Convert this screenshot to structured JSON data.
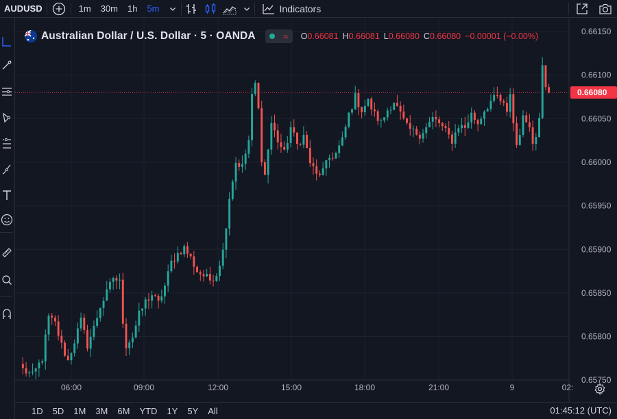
{
  "toolbar": {
    "symbol": "AUDUSD",
    "intervals": [
      "1m",
      "30m",
      "1h",
      "5m"
    ],
    "active_interval": "5m",
    "indicators_label": "Indicators"
  },
  "legend": {
    "title": "Australian Dollar / U.S. Dollar · 5 · OANDA",
    "open_label": "O",
    "open": "0.66081",
    "high_label": "H",
    "high": "0.66081",
    "low_label": "L",
    "low": "0.66080",
    "close_label": "C",
    "close": "0.66080",
    "change": "−0.00001 (−0.00%)"
  },
  "colors": {
    "background": "#131722",
    "up": "#26a69a",
    "down": "#ef5350",
    "price_label": "#f23645",
    "accent": "#2962ff"
  },
  "chart_data": {
    "type": "candlestick",
    "y_ticks": [
      "0.66150",
      "0.66100",
      "0.66050",
      "0.66000",
      "0.65950",
      "0.65900",
      "0.65850",
      "0.65800",
      "0.65750"
    ],
    "ylim": [
      0.65725,
      0.66165
    ],
    "x_ticks": [
      "06:00",
      "09:00",
      "12:00",
      "15:00",
      "18:00",
      "21:00",
      "9",
      "02:"
    ],
    "current_price": "0.66080",
    "close_path": [
      [
        0,
        0.65762
      ],
      [
        3,
        0.65755
      ],
      [
        6,
        0.65775
      ],
      [
        8,
        0.65822
      ],
      [
        10,
        0.65815
      ],
      [
        12,
        0.6579
      ],
      [
        14,
        0.65772
      ],
      [
        16,
        0.65795
      ],
      [
        18,
        0.65818
      ],
      [
        20,
        0.6579
      ],
      [
        22,
        0.6581
      ],
      [
        24,
        0.65835
      ],
      [
        26,
        0.6585
      ],
      [
        28,
        0.65868
      ],
      [
        30,
        0.65862
      ],
      [
        31,
        0.65818
      ],
      [
        32,
        0.6579
      ],
      [
        34,
        0.658
      ],
      [
        36,
        0.65825
      ],
      [
        38,
        0.6584
      ],
      [
        40,
        0.65848
      ],
      [
        42,
        0.65838
      ],
      [
        44,
        0.65858
      ],
      [
        46,
        0.65885
      ],
      [
        48,
        0.65895
      ],
      [
        50,
        0.65902
      ],
      [
        52,
        0.6589
      ],
      [
        54,
        0.65875
      ],
      [
        56,
        0.6587
      ],
      [
        58,
        0.65865
      ],
      [
        60,
        0.65872
      ],
      [
        62,
        0.65898
      ],
      [
        64,
        0.6596
      ],
      [
        66,
        0.66
      ],
      [
        68,
        0.65995
      ],
      [
        70,
        0.66025
      ],
      [
        71,
        0.66075
      ],
      [
        72,
        0.6609
      ],
      [
        73,
        0.6606
      ],
      [
        74,
        0.66005
      ],
      [
        75,
        0.65985
      ],
      [
        77,
        0.66045
      ],
      [
        79,
        0.66025
      ],
      [
        81,
        0.6601
      ],
      [
        83,
        0.6604
      ],
      [
        85,
        0.6602
      ],
      [
        87,
        0.6603
      ],
      [
        89,
        0.66
      ],
      [
        91,
        0.65985
      ],
      [
        93,
        0.6599
      ],
      [
        95,
        0.66005
      ],
      [
        97,
        0.6601
      ],
      [
        99,
        0.66025
      ],
      [
        101,
        0.66055
      ],
      [
        103,
        0.66075
      ],
      [
        105,
        0.6606
      ],
      [
        107,
        0.6607
      ],
      [
        109,
        0.66055
      ],
      [
        111,
        0.66045
      ],
      [
        113,
        0.6606
      ],
      [
        115,
        0.6607
      ],
      [
        117,
        0.66055
      ],
      [
        119,
        0.6604
      ],
      [
        121,
        0.66035
      ],
      [
        123,
        0.66032
      ],
      [
        125,
        0.6604
      ],
      [
        127,
        0.6605
      ],
      [
        129,
        0.66045
      ],
      [
        131,
        0.66035
      ],
      [
        133,
        0.66025
      ],
      [
        135,
        0.66042
      ],
      [
        137,
        0.6604
      ],
      [
        139,
        0.66055
      ],
      [
        141,
        0.66045
      ],
      [
        143,
        0.6606
      ],
      [
        145,
        0.6607
      ],
      [
        147,
        0.66075
      ],
      [
        149,
        0.66065
      ],
      [
        150,
        0.66055
      ],
      [
        151,
        0.6608
      ],
      [
        152,
        0.66045
      ],
      [
        153,
        0.6602
      ],
      [
        154,
        0.66035
      ],
      [
        155,
        0.6605
      ],
      [
        157,
        0.66045
      ],
      [
        158,
        0.6602
      ],
      [
        159,
        0.6603
      ],
      [
        160,
        0.66055
      ],
      [
        161,
        0.66115
      ],
      [
        162,
        0.6609
      ],
      [
        163,
        0.6608
      ]
    ]
  },
  "bottom": {
    "ranges": [
      "1D",
      "5D",
      "1M",
      "3M",
      "6M",
      "YTD",
      "1Y",
      "5Y",
      "All"
    ],
    "clock": "01:45:12 (UTC)"
  }
}
